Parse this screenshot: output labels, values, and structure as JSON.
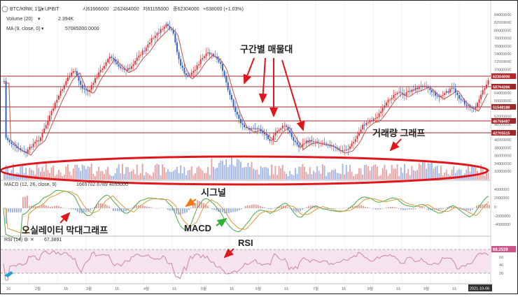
{
  "symbol": "BTC/KRW, 1일, UPBIT",
  "ohlc": {
    "open": "시61666000",
    "high": "고62484000",
    "low": "저61155000",
    "close": "종62304000",
    "change": "+638000 (+1.03%)"
  },
  "indicators": {
    "volume": {
      "label": "Volume (20)",
      "value": "2.394K"
    },
    "ma": {
      "label": "MA (9, close, 0)",
      "value": "57085000.0000"
    },
    "macd": {
      "label": "MACD (12, 26, close, 9)",
      "values": "1665702.6789  4055000"
    },
    "rsi": {
      "label": "RSI (14)",
      "value": "67.3891"
    }
  },
  "annotations": {
    "support_zones": "구간별 매물대",
    "volume_graph": "거래량 그래프",
    "signal": "시그널",
    "macd": "MACD",
    "oscillator": "오실레이터 막대그래프",
    "rsi": "RSI"
  },
  "price_axis": [
    "84000000",
    "82000000",
    "80000000",
    "78000000",
    "76000000",
    "74000000",
    "72000000",
    "70000000",
    "68000000",
    "66000000",
    "64000000",
    "60000000",
    "56000000",
    "52000000",
    "48000000",
    "44000000",
    "40000000",
    "38000000",
    "36000000",
    "34000000",
    "32000000"
  ],
  "level_badges": [
    "62304000",
    "58794266",
    "51548188",
    "46758487",
    "42705515"
  ],
  "macd_axis": [
    "4000000",
    "2000000",
    "0",
    "-2000000",
    "-4000000"
  ],
  "rsi_axis": [
    "80",
    "60",
    "40",
    "20"
  ],
  "rsi_badge": "69.2539",
  "time_axis": [
    "16",
    "2월",
    "16",
    "3월",
    "16",
    "4월",
    "16",
    "5월",
    "16",
    "6월",
    "16",
    "7월",
    "16",
    "8월",
    "16",
    "9월",
    "16",
    "2021-10-06"
  ],
  "colors": {
    "up": "#d73236",
    "down": "#2a5bc8",
    "level": "#a0282a",
    "ellipse": "#e1161c",
    "ma": "#c0504d",
    "macd_line": "#4aa84a",
    "signal_line": "#d99a3c",
    "rsi": "#cc8899",
    "rsi_band": "#f5e4f0"
  },
  "icons": [
    "tradingview-logo-icon",
    "chevron-down-icon",
    "eye-icon",
    "settings-icon",
    "close-icon"
  ]
}
